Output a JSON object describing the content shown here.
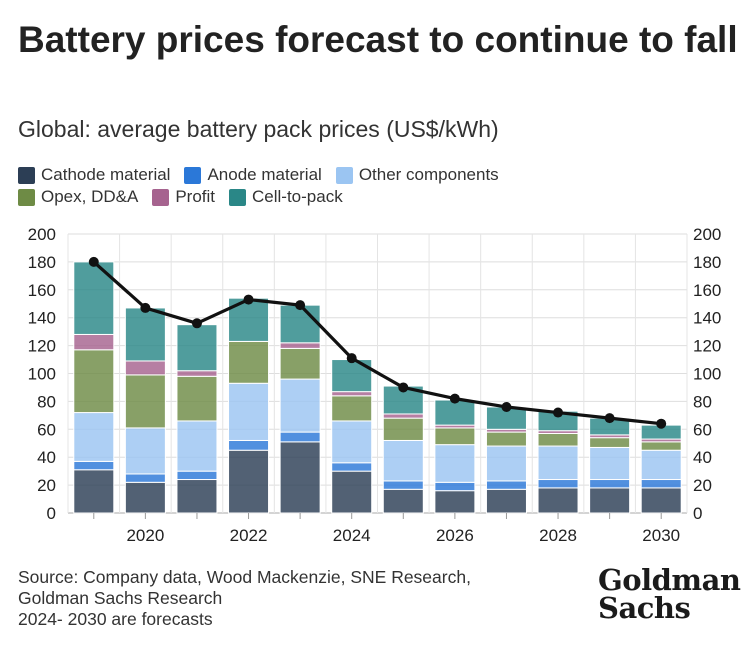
{
  "title": "Battery prices forecast to continue to fall",
  "subtitle": "Global: average battery pack prices (US$/kWh)",
  "legend": {
    "row1": [
      {
        "label": "Cathode material",
        "color": "#2c3e55"
      },
      {
        "label": "Anode material",
        "color": "#2b78d8"
      },
      {
        "label": "Other components",
        "color": "#9bc5f2"
      }
    ],
    "row2": [
      {
        "label": "Opex, DD&A",
        "color": "#6e8b45"
      },
      {
        "label": "Profit",
        "color": "#a6638f"
      },
      {
        "label": "Cell-to-pack",
        "color": "#2a8787"
      }
    ]
  },
  "chart_data": {
    "type": "bar",
    "stacked": true,
    "title": "",
    "xlabel": "",
    "ylabel": "",
    "ylim": [
      0,
      200
    ],
    "yticks": [
      0,
      20,
      40,
      60,
      80,
      100,
      120,
      140,
      160,
      180,
      200
    ],
    "categories": [
      2019,
      2020,
      2021,
      2022,
      2023,
      2024,
      2025,
      2026,
      2027,
      2028,
      2029,
      2030
    ],
    "xtick_labels": [
      "2020",
      "2022",
      "2024",
      "2026",
      "2028",
      "2030"
    ],
    "grid": true,
    "secondary_axis": "mirrored",
    "series": [
      {
        "name": "Cathode material",
        "color": "#2c3e55",
        "values": [
          31,
          22,
          24,
          45,
          51,
          30,
          17,
          16,
          17,
          18,
          18,
          18
        ]
      },
      {
        "name": "Anode material",
        "color": "#2b78d8",
        "values": [
          6,
          6,
          6,
          7,
          7,
          6,
          6,
          6,
          6,
          6,
          6,
          6
        ]
      },
      {
        "name": "Other components",
        "color": "#9bc5f2",
        "values": [
          35,
          33,
          36,
          41,
          38,
          30,
          29,
          27,
          25,
          24,
          23,
          21
        ]
      },
      {
        "name": "Opex, DD&A",
        "color": "#6e8b45",
        "values": [
          45,
          38,
          32,
          30,
          22,
          18,
          16,
          12,
          10,
          9,
          7,
          6
        ]
      },
      {
        "name": "Profit",
        "color": "#a6638f",
        "values": [
          11,
          10,
          4,
          0,
          4,
          3,
          3,
          2,
          2,
          2,
          2,
          2
        ]
      },
      {
        "name": "Cell-to-pack",
        "color": "#2a8787",
        "values": [
          52,
          38,
          33,
          31,
          27,
          23,
          20,
          18,
          16,
          14,
          12,
          10
        ]
      }
    ],
    "line": {
      "name": "Average pack price",
      "color": "#111111",
      "values": [
        180,
        147,
        136,
        153,
        149,
        111,
        90,
        82,
        76,
        72,
        68,
        64
      ]
    }
  },
  "source_lines": [
    "Source: Company data, Wood Mackenzie, SNE Research,",
    "Goldman Sachs Research",
    "2024- 2030 are forecasts"
  ],
  "logo": {
    "line1": "Goldman",
    "line2": "Sachs"
  }
}
